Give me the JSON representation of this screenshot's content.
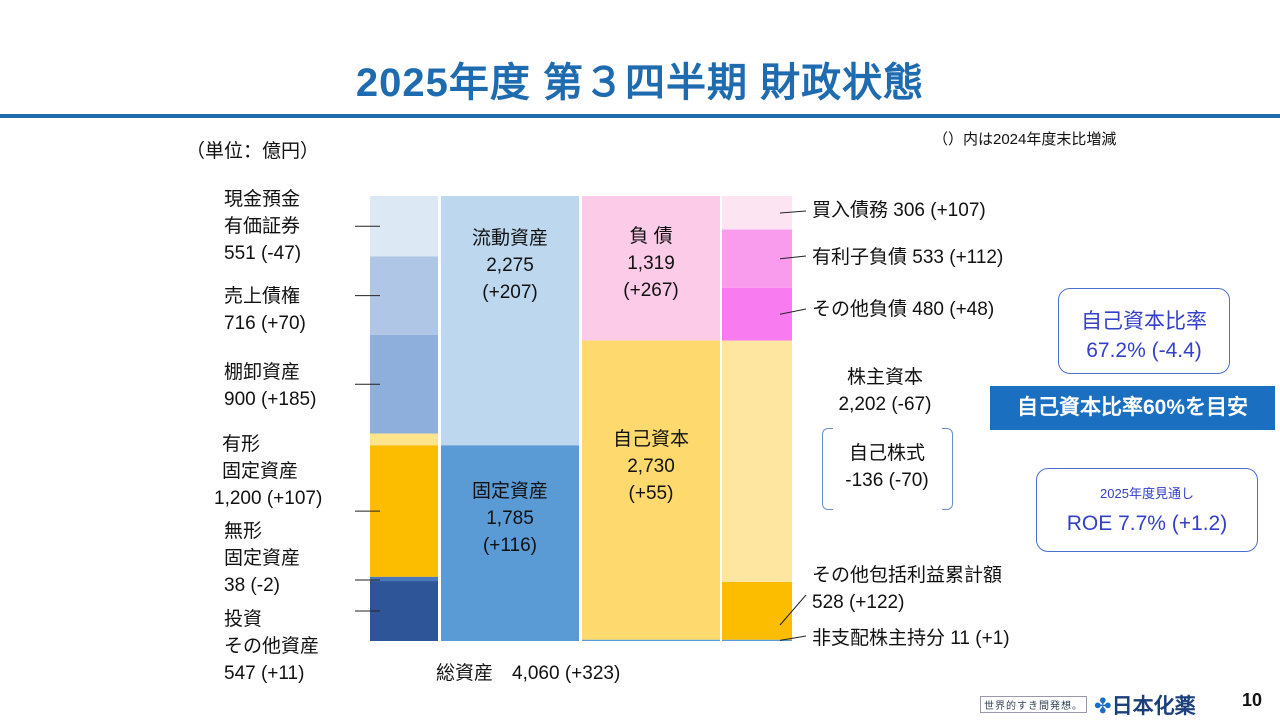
{
  "header": {
    "title": "2025年度 第３四半期 財政状態"
  },
  "unit_label": "（単位：億円）",
  "comparison_note": "（）内は2024年度末比増減",
  "chart_data": {
    "type": "bar",
    "title": "2025年度 第３四半期 財政状態",
    "unit": "億円",
    "total_assets": {
      "label": "総資産",
      "value": 4060,
      "change": 323,
      "text": "総資産　4,060 (+323)"
    },
    "asset_items": [
      {
        "id": "cash",
        "lines": [
          "現金預金",
          "有価証券",
          "551 (-47)"
        ],
        "value": 551,
        "change": -47,
        "color": "#dde8f5"
      },
      {
        "id": "receivables",
        "lines": [
          "売上債権",
          "716 (+70)"
        ],
        "value": 716,
        "change": 70,
        "color": "#b0c6e6"
      },
      {
        "id": "inventory",
        "lines": [
          "棚卸資産",
          "900 (+185)"
        ],
        "value": 900,
        "change": 185,
        "color": "#8eaedc"
      },
      {
        "id": "other-current",
        "lines": [],
        "value": 108,
        "change": null,
        "color": "#ffe48e"
      },
      {
        "id": "tangible",
        "lines": [
          "有形",
          "固定資産",
          "1,200 (+107)"
        ],
        "value": 1200,
        "change": 107,
        "color": "#fcbd00"
      },
      {
        "id": "intangible",
        "lines": [
          "無形",
          "固定資産",
          "38 (-2)"
        ],
        "value": 38,
        "change": -2,
        "color": "#4a78b8"
      },
      {
        "id": "investments",
        "lines": [
          "投資",
          "その他資産",
          "547 (+11)"
        ],
        "value": 547,
        "change": 11,
        "color": "#2e5597"
      }
    ],
    "asset_groups": [
      {
        "id": "current-assets",
        "lines": [
          "流動資産",
          "2,275",
          "(+207)"
        ],
        "value": 2275,
        "change": 207,
        "color": "#bdd7ee"
      },
      {
        "id": "fixed-assets",
        "lines": [
          "固定資産",
          "1,785",
          "(+116)"
        ],
        "value": 1785,
        "change": 116,
        "color": "#5b9bd5"
      }
    ],
    "liab_groups": [
      {
        "id": "liabilities",
        "lines": [
          "負 債",
          "1,319",
          "(+267)"
        ],
        "value": 1319,
        "change": 267,
        "color": "#fccbe8"
      },
      {
        "id": "net-assets",
        "lines": [
          "自己資本",
          "2,730",
          "(+55)"
        ],
        "value": 2730,
        "change": 55,
        "color": "#fdd96e"
      },
      {
        "id": "noncontrolling",
        "lines": [],
        "value": 11,
        "change": 1,
        "color": "#5b9bd5"
      }
    ],
    "liab_items": [
      {
        "id": "payables",
        "text": "買入債務 306 (+107)",
        "value": 306,
        "change": 107,
        "color": "#fde4f3"
      },
      {
        "id": "interest-bearing",
        "text": "有利子負債 533 (+112)",
        "value": 533,
        "change": 112,
        "color": "#fa9cee"
      },
      {
        "id": "other-liab",
        "text": "その他負債 480 (+48)",
        "value": 480,
        "change": 48,
        "color": "#f87cf0"
      },
      {
        "id": "shareholders-equity",
        "text": "株主資本",
        "value": 2202,
        "change": -67,
        "color": "#fee5a0"
      },
      {
        "id": "aoci",
        "text": "その他包括利益累計額",
        "value": 528,
        "change": 122,
        "color": "#fcbd00"
      },
      {
        "id": "nci",
        "text": "非支配株主持分 11 (+1)",
        "value": 11,
        "change": 1,
        "color": "#5b9bd5"
      }
    ],
    "shareholders_equity_lines": [
      "株主資本",
      "2,202 (-67)"
    ],
    "treasury_stock_lines": [
      "自己株式",
      "-136 (-70)"
    ],
    "aoci_lines": [
      "その他包括利益累計額",
      "528 (+122)"
    ]
  },
  "equity_ratio": {
    "label": "自己資本比率",
    "value": "67.2% (-4.4)"
  },
  "target_banner": "自己資本比率60%を目安",
  "roe_box": {
    "caption": "2025年度見通し",
    "value": "ROE 7.7% (+1.2)"
  },
  "footer": {
    "slogan": "世界的すき間発想。",
    "logo_text": "日本化薬",
    "page_number": "10"
  }
}
